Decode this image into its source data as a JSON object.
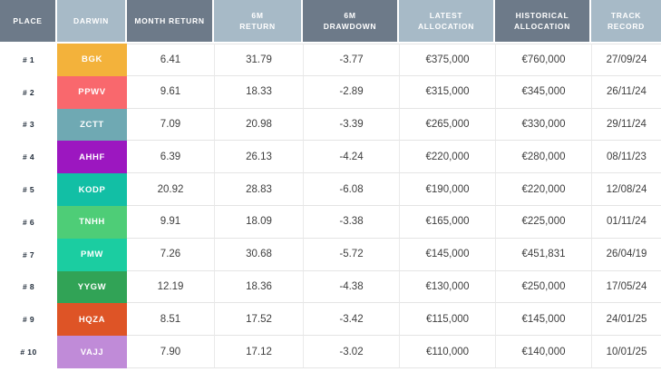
{
  "theme": {
    "background": "#ffffff",
    "header_dark": "#6d7a89",
    "header_light": "#a7bac7",
    "row_border": "#e4e4e4",
    "col_border": "#eaeaea",
    "place_text": "#1e2a38",
    "value_text": "#3e3e3e"
  },
  "table": {
    "columns": [
      {
        "key": "place",
        "lines": [
          "PLACE"
        ]
      },
      {
        "key": "darwin",
        "lines": [
          "DARWIN"
        ]
      },
      {
        "key": "month_return",
        "lines": [
          "MONTH RETURN"
        ]
      },
      {
        "key": "six_m_return",
        "lines": [
          "6M",
          "RETURN"
        ]
      },
      {
        "key": "six_m_drawdown",
        "lines": [
          "6M",
          "DRAWDOWN"
        ]
      },
      {
        "key": "latest_allocation",
        "lines": [
          "LATEST",
          "ALLOCATION"
        ]
      },
      {
        "key": "historical_allocation",
        "lines": [
          "HISTORICAL",
          "ALLOCATION"
        ]
      },
      {
        "key": "track_record",
        "lines": [
          "TRACK",
          "RECORD"
        ]
      }
    ],
    "rows": [
      {
        "place": "# 1",
        "darwin": "BGK",
        "color": "#f3b23b",
        "month_return": "6.41",
        "six_m_return": "31.79",
        "six_m_drawdown": "-3.77",
        "latest_allocation": "€375,000",
        "historical_allocation": "€760,000",
        "track_record": "27/09/24"
      },
      {
        "place": "# 2",
        "darwin": "PPWV",
        "color": "#f9686d",
        "month_return": "9.61",
        "six_m_return": "18.33",
        "six_m_drawdown": "-2.89",
        "latest_allocation": "€315,000",
        "historical_allocation": "€345,000",
        "track_record": "26/11/24"
      },
      {
        "place": "# 3",
        "darwin": "ZCTT",
        "color": "#6fa9b3",
        "month_return": "7.09",
        "six_m_return": "20.98",
        "six_m_drawdown": "-3.39",
        "latest_allocation": "€265,000",
        "historical_allocation": "€330,000",
        "track_record": "29/11/24"
      },
      {
        "place": "# 4",
        "darwin": "AHHF",
        "color": "#9c17c0",
        "month_return": "6.39",
        "six_m_return": "26.13",
        "six_m_drawdown": "-4.24",
        "latest_allocation": "€220,000",
        "historical_allocation": "€280,000",
        "track_record": "08/11/23"
      },
      {
        "place": "# 5",
        "darwin": "KODP",
        "color": "#12bfa5",
        "month_return": "20.92",
        "six_m_return": "28.83",
        "six_m_drawdown": "-6.08",
        "latest_allocation": "€190,000",
        "historical_allocation": "€220,000",
        "track_record": "12/08/24"
      },
      {
        "place": "# 6",
        "darwin": "TNHH",
        "color": "#4ecd77",
        "month_return": "9.91",
        "six_m_return": "18.09",
        "six_m_drawdown": "-3.38",
        "latest_allocation": "€165,000",
        "historical_allocation": "€225,000",
        "track_record": "01/11/24"
      },
      {
        "place": "# 7",
        "darwin": "PMW",
        "color": "#1bcda1",
        "month_return": "7.26",
        "six_m_return": "30.68",
        "six_m_drawdown": "-5.72",
        "latest_allocation": "€145,000",
        "historical_allocation": "€451,831",
        "track_record": "26/04/19"
      },
      {
        "place": "# 8",
        "darwin": "YYGW",
        "color": "#31a356",
        "month_return": "12.19",
        "six_m_return": "18.36",
        "six_m_drawdown": "-4.38",
        "latest_allocation": "€130,000",
        "historical_allocation": "€250,000",
        "track_record": "17/05/24"
      },
      {
        "place": "# 9",
        "darwin": "HQZA",
        "color": "#de5426",
        "month_return": "8.51",
        "six_m_return": "17.52",
        "six_m_drawdown": "-3.42",
        "latest_allocation": "€115,000",
        "historical_allocation": "€145,000",
        "track_record": "24/01/25"
      },
      {
        "place": "# 10",
        "darwin": "VAJJ",
        "color": "#c08bd8",
        "month_return": "7.90",
        "six_m_return": "17.12",
        "six_m_drawdown": "-3.02",
        "latest_allocation": "€110,000",
        "historical_allocation": "€140,000",
        "track_record": "10/01/25"
      }
    ]
  }
}
